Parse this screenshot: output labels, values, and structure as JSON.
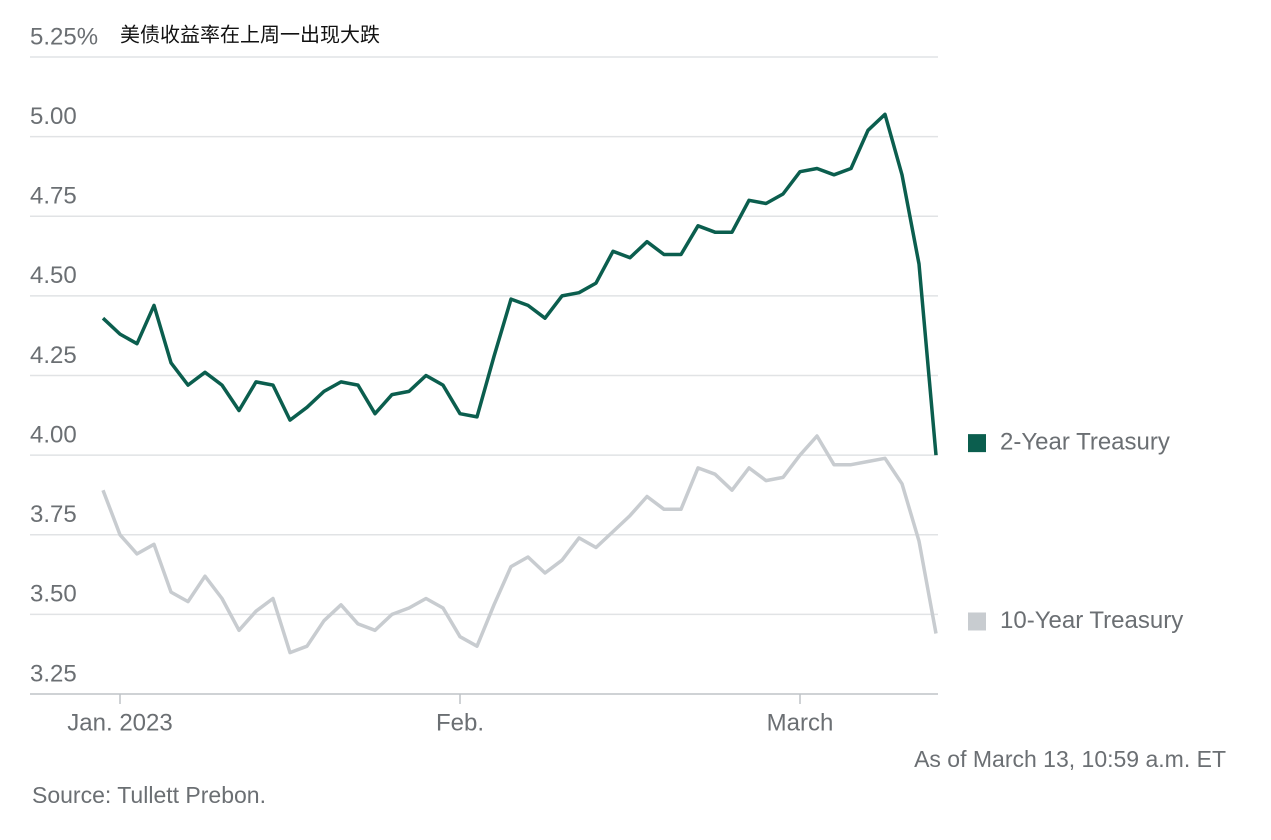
{
  "chart_data": {
    "type": "line",
    "title": "美债收益率在上周一出现大跌",
    "annotation": "As of March 13, 10:59 a.m. ET",
    "source": "Source: Tullett Prebon.",
    "categories": [
      null,
      "Jan. 2023",
      null,
      null,
      null,
      null,
      null,
      null,
      null,
      null,
      null,
      null,
      null,
      null,
      null,
      null,
      null,
      null,
      null,
      null,
      null,
      "Feb.",
      null,
      null,
      null,
      null,
      null,
      null,
      null,
      null,
      null,
      null,
      null,
      null,
      null,
      null,
      null,
      null,
      null,
      null,
      null,
      "March",
      null,
      null,
      null,
      null,
      null,
      null,
      null,
      null
    ],
    "series": [
      {
        "name": "2-Year Treasury",
        "color": "#0b5e4e",
        "values": [
          4.43,
          4.38,
          4.35,
          4.47,
          4.29,
          4.22,
          4.26,
          4.22,
          4.14,
          4.23,
          4.22,
          4.11,
          4.15,
          4.2,
          4.23,
          4.22,
          4.13,
          4.19,
          4.2,
          4.25,
          4.22,
          4.13,
          4.12,
          4.31,
          4.49,
          4.47,
          4.43,
          4.5,
          4.51,
          4.54,
          4.64,
          4.62,
          4.67,
          4.63,
          4.63,
          4.72,
          4.7,
          4.7,
          4.8,
          4.79,
          4.82,
          4.89,
          4.9,
          4.88,
          4.9,
          5.02,
          5.07,
          4.88,
          4.6,
          4.0
        ]
      },
      {
        "name": "10-Year Treasury",
        "color": "#c8ccd0",
        "values": [
          3.89,
          3.75,
          3.69,
          3.72,
          3.57,
          3.54,
          3.62,
          3.55,
          3.45,
          3.51,
          3.55,
          3.38,
          3.4,
          3.48,
          3.53,
          3.47,
          3.45,
          3.5,
          3.52,
          3.55,
          3.52,
          3.43,
          3.4,
          3.53,
          3.65,
          3.68,
          3.63,
          3.67,
          3.74,
          3.71,
          3.76,
          3.81,
          3.87,
          3.83,
          3.83,
          3.96,
          3.94,
          3.89,
          3.96,
          3.92,
          3.93,
          4.0,
          4.06,
          3.97,
          3.97,
          3.98,
          3.99,
          3.91,
          3.73,
          3.44
        ]
      }
    ],
    "ylim": [
      3.25,
      5.25
    ],
    "yticks": [
      {
        "value": 3.25,
        "label": "3.25"
      },
      {
        "value": 3.5,
        "label": "3.50"
      },
      {
        "value": 3.75,
        "label": "3.75"
      },
      {
        "value": 4,
        "label": "4.00"
      },
      {
        "value": 4.25,
        "label": "4.25"
      },
      {
        "value": 4.5,
        "label": "4.50"
      },
      {
        "value": 4.75,
        "label": "4.75"
      },
      {
        "value": 5,
        "label": "5.00"
      },
      {
        "value": 5.25,
        "label": "5.25%"
      }
    ],
    "grid": true,
    "legend": "right"
  }
}
